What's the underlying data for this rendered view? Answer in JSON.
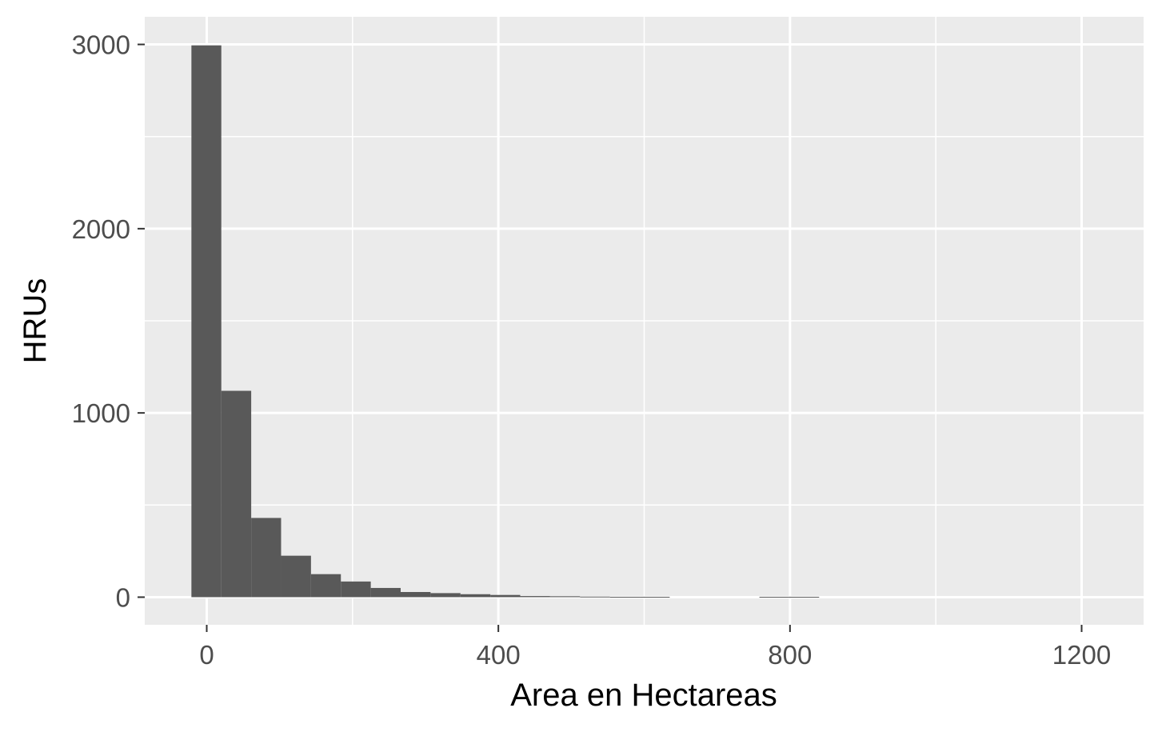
{
  "chart_data": {
    "type": "bar",
    "subtype": "histogram",
    "title": "",
    "xlabel": "Area en Hectareas",
    "ylabel": "HRUs",
    "xlim": [
      -85,
      1285
    ],
    "ylim": [
      -150,
      3150
    ],
    "x_ticks": [
      0,
      400,
      800,
      1200
    ],
    "x_tick_labels": [
      "0",
      "400",
      "800",
      "1200"
    ],
    "y_ticks": [
      0,
      1000,
      2000,
      3000
    ],
    "y_tick_labels": [
      "0",
      "1000",
      "2000",
      "3000"
    ],
    "grid": true,
    "bins": [
      {
        "x0": -21,
        "x1": 20,
        "count": 2995
      },
      {
        "x0": 20,
        "x1": 61,
        "count": 1120
      },
      {
        "x0": 61,
        "x1": 102,
        "count": 430
      },
      {
        "x0": 102,
        "x1": 143,
        "count": 225
      },
      {
        "x0": 143,
        "x1": 184,
        "count": 125
      },
      {
        "x0": 184,
        "x1": 225,
        "count": 85
      },
      {
        "x0": 225,
        "x1": 266,
        "count": 50
      },
      {
        "x0": 266,
        "x1": 307,
        "count": 28
      },
      {
        "x0": 307,
        "x1": 348,
        "count": 22
      },
      {
        "x0": 348,
        "x1": 389,
        "count": 16
      },
      {
        "x0": 389,
        "x1": 430,
        "count": 12
      },
      {
        "x0": 430,
        "x1": 471,
        "count": 6
      },
      {
        "x0": 471,
        "x1": 512,
        "count": 5
      },
      {
        "x0": 512,
        "x1": 553,
        "count": 3
      },
      {
        "x0": 553,
        "x1": 594,
        "count": 2
      },
      {
        "x0": 594,
        "x1": 635,
        "count": 2
      },
      {
        "x0": 635,
        "x1": 676,
        "count": 0
      },
      {
        "x0": 676,
        "x1": 717,
        "count": 0
      },
      {
        "x0": 717,
        "x1": 758,
        "count": 0
      },
      {
        "x0": 758,
        "x1": 799,
        "count": 2
      },
      {
        "x0": 799,
        "x1": 840,
        "count": 2
      }
    ],
    "colors": {
      "panel": "#ebebeb",
      "grid": "#ffffff",
      "bar": "#595959",
      "tick_mark": "#333333"
    }
  }
}
